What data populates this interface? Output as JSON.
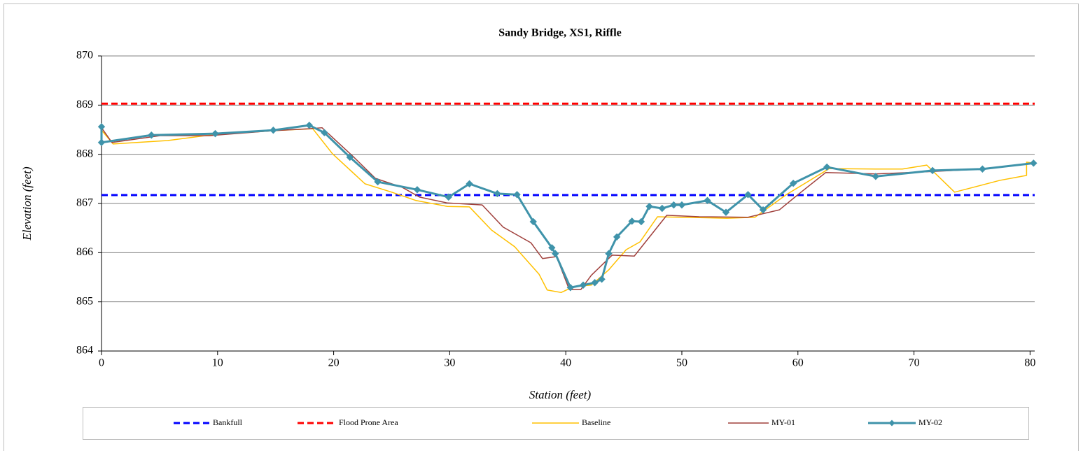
{
  "chart_data": {
    "type": "line",
    "title": "Sandy Bridge, XS1, Riffle",
    "xlabel": "Station (feet)",
    "ylabel": "Elevation (feet)",
    "xlim": [
      0,
      80.4
    ],
    "xticks": [
      0,
      10,
      20,
      30,
      40,
      50,
      60,
      70,
      80
    ],
    "ylim": [
      864,
      870
    ],
    "yticks": [
      864,
      865,
      866,
      867,
      868,
      869,
      870
    ],
    "grid": true,
    "legend": "bottom",
    "series": [
      {
        "name": "Bankfull",
        "color": "#0000ff",
        "dash": true,
        "x": [
          0,
          80.4
        ],
        "values": [
          867.17,
          867.17
        ]
      },
      {
        "name": "Flood Prone Area",
        "color": "#ff0000",
        "dash": true,
        "x": [
          0,
          80.4
        ],
        "values": [
          869.03,
          869.03
        ]
      },
      {
        "name": "Baseline",
        "color": "#ffc000",
        "x": [
          0,
          1.0,
          5.7,
          9.3,
          14.8,
          18.2,
          19.9,
          22.7,
          25.0,
          27.1,
          29.8,
          31.7,
          33.6,
          35.6,
          37.7,
          38.4,
          39.6,
          40.7,
          42.2,
          43.7,
          45.2,
          46.4,
          47.9,
          50.0,
          53.9,
          56.3,
          59.0,
          61.1,
          62.7,
          66.7,
          69.0,
          71.1,
          73.5,
          77.4,
          79.7,
          79.7,
          80.3
        ],
        "values": [
          868.49,
          868.21,
          868.28,
          868.39,
          868.48,
          868.52,
          868.01,
          867.4,
          867.23,
          867.06,
          866.94,
          866.93,
          866.46,
          866.12,
          865.56,
          865.24,
          865.19,
          865.31,
          865.34,
          865.65,
          866.06,
          866.22,
          866.73,
          866.72,
          866.7,
          866.72,
          867.18,
          867.48,
          867.71,
          867.7,
          867.7,
          867.78,
          867.23,
          867.47,
          867.57,
          867.84,
          867.82
        ]
      },
      {
        "name": "MY-01",
        "color": "#a0403c",
        "x": [
          0,
          0.9,
          5.1,
          9.3,
          14.8,
          17.9,
          19.0,
          21.7,
          23.6,
          25.9,
          27.4,
          29.8,
          32.8,
          34.6,
          37.0,
          38.0,
          39.2,
          40.3,
          41.3,
          42.2,
          44.0,
          45.9,
          48.7,
          51.5,
          55.7,
          58.4,
          59.9,
          62.4,
          66.7,
          71.6,
          75.9,
          80.3
        ],
        "values": [
          868.54,
          868.24,
          868.38,
          868.38,
          868.48,
          868.52,
          868.54,
          867.95,
          867.51,
          867.33,
          867.13,
          867.01,
          866.97,
          866.52,
          866.2,
          865.88,
          865.92,
          865.25,
          865.25,
          865.54,
          865.95,
          865.93,
          866.76,
          866.73,
          866.72,
          866.87,
          867.16,
          867.63,
          867.6,
          867.65,
          867.7,
          867.82
        ]
      },
      {
        "name": "MY-02",
        "color": "#3f93aa",
        "marker": "diamond",
        "x": [
          0,
          0,
          4.3,
          9.8,
          14.8,
          17.9,
          19.2,
          21.4,
          23.8,
          27.2,
          29.9,
          31.7,
          34.1,
          35.8,
          37.2,
          38.8,
          39.1,
          40.4,
          41.5,
          42.5,
          43.1,
          43.7,
          44.4,
          45.7,
          46.5,
          47.2,
          48.3,
          49.3,
          50.0,
          52.2,
          53.8,
          55.7,
          57.0,
          59.6,
          62.5,
          66.7,
          71.6,
          75.9,
          80.3
        ],
        "values": [
          868.56,
          868.24,
          868.39,
          868.42,
          868.49,
          868.59,
          868.44,
          867.94,
          867.44,
          867.28,
          867.13,
          867.4,
          867.2,
          867.18,
          866.63,
          866.1,
          865.98,
          865.29,
          865.34,
          865.39,
          865.46,
          865.98,
          866.32,
          866.64,
          866.63,
          866.94,
          866.9,
          866.97,
          866.97,
          867.06,
          866.82,
          867.18,
          866.87,
          867.41,
          867.74,
          867.55,
          867.67,
          867.7,
          867.82
        ]
      }
    ]
  }
}
